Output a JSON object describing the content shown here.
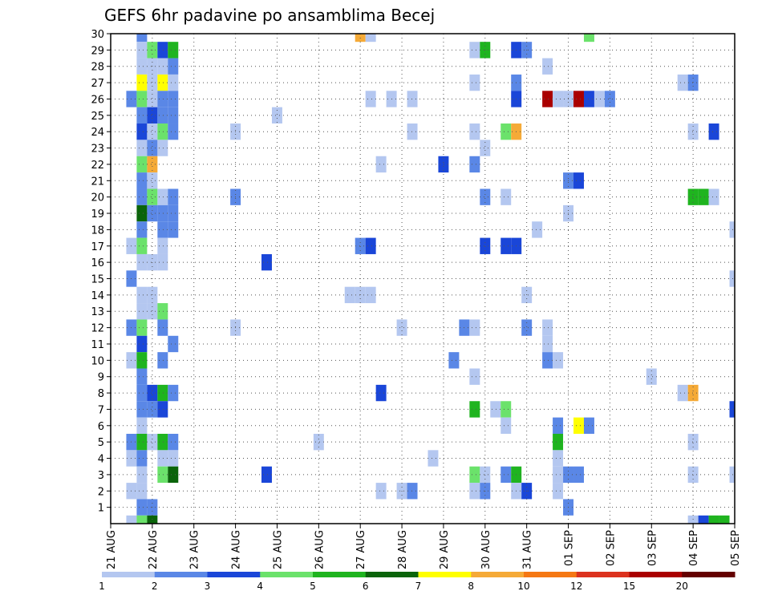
{
  "chart_data": {
    "type": "heatmap",
    "title": "GEFS 6hr padavine po ansamblima Becej",
    "xlabel": "",
    "ylabel": "",
    "x_ticks": [
      "21 AUG",
      "22 AUG",
      "23 AUG",
      "24 AUG",
      "25 AUG",
      "26 AUG",
      "27 AUG",
      "28 AUG",
      "29 AUG",
      "30 AUG",
      "31 AUG",
      "01 SEP",
      "02 SEP",
      "03 SEP",
      "04 SEP",
      "05 SEP"
    ],
    "y_ticks": [
      1,
      2,
      3,
      4,
      5,
      6,
      7,
      8,
      9,
      10,
      11,
      12,
      13,
      14,
      15,
      16,
      17,
      18,
      19,
      20,
      21,
      22,
      23,
      24,
      25,
      26,
      27,
      28,
      29,
      30
    ],
    "x_range_steps": [
      0,
      60
    ],
    "y_range": [
      0,
      30
    ],
    "grid": true,
    "steps_per_day": 4,
    "colorbar": {
      "labels": [
        "1",
        "2",
        "3",
        "4",
        "5",
        "6",
        "7",
        "8",
        "10",
        "12",
        "15",
        "20"
      ],
      "colors": [
        "#b4c7f0",
        "#5a87e6",
        "#1a46d8",
        "#6be26b",
        "#1fb41f",
        "#0a640a",
        "#ffff00",
        "#f5aa37",
        "#f57814",
        "#dc321e",
        "#aa0000",
        "#640000"
      ]
    },
    "cells": [
      [
        3,
        30,
        1
      ],
      [
        3,
        29,
        0
      ],
      [
        4,
        29,
        3
      ],
      [
        5,
        29,
        2
      ],
      [
        6,
        29,
        4
      ],
      [
        3,
        28,
        0
      ],
      [
        4,
        28,
        0
      ],
      [
        5,
        28,
        0
      ],
      [
        6,
        28,
        1
      ],
      [
        3,
        27,
        6
      ],
      [
        4,
        27,
        0
      ],
      [
        5,
        27,
        6
      ],
      [
        6,
        27,
        0
      ],
      [
        2,
        26,
        1
      ],
      [
        3,
        26,
        3
      ],
      [
        4,
        26,
        0
      ],
      [
        5,
        26,
        1
      ],
      [
        6,
        26,
        1
      ],
      [
        3,
        25,
        1
      ],
      [
        4,
        25,
        2
      ],
      [
        5,
        25,
        1
      ],
      [
        6,
        25,
        1
      ],
      [
        3,
        24,
        2
      ],
      [
        4,
        24,
        0
      ],
      [
        5,
        24,
        3
      ],
      [
        6,
        24,
        1
      ],
      [
        3,
        23,
        0
      ],
      [
        4,
        23,
        1
      ],
      [
        5,
        23,
        0
      ],
      [
        3,
        22,
        3
      ],
      [
        4,
        22,
        7
      ],
      [
        3,
        21,
        1
      ],
      [
        4,
        21,
        0
      ],
      [
        3,
        20,
        1
      ],
      [
        4,
        20,
        3
      ],
      [
        5,
        20,
        0
      ],
      [
        6,
        20,
        1
      ],
      [
        3,
        19,
        5
      ],
      [
        4,
        19,
        1
      ],
      [
        5,
        19,
        1
      ],
      [
        6,
        19,
        1
      ],
      [
        3,
        18,
        1
      ],
      [
        5,
        18,
        1
      ],
      [
        6,
        18,
        1
      ],
      [
        2,
        17,
        0
      ],
      [
        3,
        17,
        3
      ],
      [
        5,
        17,
        0
      ],
      [
        3,
        16,
        0
      ],
      [
        4,
        16,
        0
      ],
      [
        5,
        16,
        0
      ],
      [
        2,
        15,
        1
      ],
      [
        3,
        14,
        0
      ],
      [
        4,
        14,
        0
      ],
      [
        3,
        13,
        0
      ],
      [
        4,
        13,
        0
      ],
      [
        5,
        13,
        3
      ],
      [
        2,
        12,
        1
      ],
      [
        3,
        12,
        3
      ],
      [
        5,
        12,
        1
      ],
      [
        3,
        11,
        2
      ],
      [
        6,
        11,
        1
      ],
      [
        2,
        10,
        0
      ],
      [
        3,
        10,
        4
      ],
      [
        5,
        10,
        1
      ],
      [
        3,
        9,
        1
      ],
      [
        3,
        8,
        1
      ],
      [
        4,
        8,
        2
      ],
      [
        5,
        8,
        4
      ],
      [
        6,
        8,
        1
      ],
      [
        3,
        7,
        1
      ],
      [
        4,
        7,
        1
      ],
      [
        5,
        7,
        2
      ],
      [
        3,
        6,
        0
      ],
      [
        2,
        5,
        1
      ],
      [
        3,
        5,
        4
      ],
      [
        4,
        5,
        0
      ],
      [
        5,
        5,
        4
      ],
      [
        6,
        5,
        1
      ],
      [
        2,
        4,
        0
      ],
      [
        3,
        4,
        1
      ],
      [
        5,
        4,
        0
      ],
      [
        6,
        4,
        0
      ],
      [
        3,
        3,
        0
      ],
      [
        5,
        3,
        3
      ],
      [
        6,
        3,
        5
      ],
      [
        2,
        2,
        0
      ],
      [
        3,
        2,
        0
      ],
      [
        3,
        1,
        1
      ],
      [
        4,
        1,
        1
      ],
      [
        2,
        0,
        0
      ],
      [
        3,
        0,
        3
      ],
      [
        4,
        0,
        5
      ],
      [
        12,
        24,
        0
      ],
      [
        12,
        20,
        1
      ],
      [
        12,
        12,
        0
      ],
      [
        16,
        25,
        0
      ],
      [
        15,
        16,
        2
      ],
      [
        15,
        3,
        2
      ],
      [
        20,
        5,
        0
      ],
      [
        24,
        30,
        7
      ],
      [
        25,
        30,
        0
      ],
      [
        24,
        17,
        1
      ],
      [
        25,
        17,
        2
      ],
      [
        23,
        14,
        0
      ],
      [
        24,
        14,
        0
      ],
      [
        25,
        14,
        0
      ],
      [
        25,
        26,
        0
      ],
      [
        26,
        22,
        0
      ],
      [
        26,
        8,
        2
      ],
      [
        26,
        2,
        0
      ],
      [
        27,
        26,
        0
      ],
      [
        28,
        12,
        0
      ],
      [
        28,
        2,
        0
      ],
      [
        29,
        26,
        0
      ],
      [
        29,
        24,
        0
      ],
      [
        29,
        2,
        1
      ],
      [
        31,
        4,
        0
      ],
      [
        32,
        22,
        2
      ],
      [
        33,
        10,
        1
      ],
      [
        34,
        12,
        1
      ],
      [
        35,
        29,
        0
      ],
      [
        35,
        27,
        0
      ],
      [
        35,
        24,
        0
      ],
      [
        35,
        22,
        1
      ],
      [
        35,
        12,
        0
      ],
      [
        35,
        9,
        0
      ],
      [
        35,
        7,
        4
      ],
      [
        35,
        3,
        3
      ],
      [
        35,
        2,
        0
      ],
      [
        36,
        29,
        4
      ],
      [
        36,
        23,
        0
      ],
      [
        36,
        20,
        1
      ],
      [
        36,
        17,
        2
      ],
      [
        36,
        3,
        0
      ],
      [
        36,
        2,
        1
      ],
      [
        37,
        7,
        0
      ],
      [
        38,
        24,
        3
      ],
      [
        38,
        20,
        0
      ],
      [
        38,
        17,
        2
      ],
      [
        38,
        7,
        3
      ],
      [
        38,
        6,
        0
      ],
      [
        38,
        3,
        1
      ],
      [
        39,
        29,
        2
      ],
      [
        39,
        27,
        1
      ],
      [
        39,
        26,
        2
      ],
      [
        39,
        24,
        7
      ],
      [
        39,
        17,
        2
      ],
      [
        39,
        3,
        4
      ],
      [
        39,
        2,
        0
      ],
      [
        40,
        29,
        1
      ],
      [
        40,
        14,
        0
      ],
      [
        40,
        12,
        1
      ],
      [
        40,
        2,
        2
      ],
      [
        41,
        18,
        0
      ],
      [
        42,
        28,
        0
      ],
      [
        42,
        26,
        10
      ],
      [
        42,
        12,
        0
      ],
      [
        42,
        11,
        0
      ],
      [
        42,
        10,
        1
      ],
      [
        43,
        26,
        0
      ],
      [
        43,
        10,
        0
      ],
      [
        43,
        6,
        1
      ],
      [
        43,
        5,
        4
      ],
      [
        43,
        4,
        0
      ],
      [
        43,
        3,
        0
      ],
      [
        43,
        2,
        0
      ],
      [
        44,
        26,
        0
      ],
      [
        44,
        21,
        1
      ],
      [
        44,
        19,
        0
      ],
      [
        44,
        3,
        1
      ],
      [
        44,
        1,
        1
      ],
      [
        45,
        26,
        10
      ],
      [
        45,
        21,
        2
      ],
      [
        45,
        6,
        6
      ],
      [
        45,
        3,
        1
      ],
      [
        46,
        30,
        3
      ],
      [
        46,
        26,
        2
      ],
      [
        46,
        6,
        1
      ],
      [
        47,
        26,
        0
      ],
      [
        48,
        26,
        1
      ],
      [
        52,
        9,
        0
      ],
      [
        55,
        27,
        0
      ],
      [
        55,
        8,
        0
      ],
      [
        56,
        27,
        1
      ],
      [
        56,
        24,
        0
      ],
      [
        56,
        20,
        4
      ],
      [
        56,
        8,
        7
      ],
      [
        56,
        5,
        0
      ],
      [
        56,
        3,
        0
      ],
      [
        56,
        0,
        0
      ],
      [
        57,
        20,
        4
      ],
      [
        57,
        0,
        2
      ],
      [
        58,
        24,
        2
      ],
      [
        58,
        20,
        0
      ],
      [
        58,
        0,
        4
      ],
      [
        59,
        0,
        4
      ],
      [
        60,
        18,
        0
      ],
      [
        60,
        15,
        0
      ],
      [
        60,
        7,
        2
      ],
      [
        60,
        3,
        0
      ]
    ]
  }
}
